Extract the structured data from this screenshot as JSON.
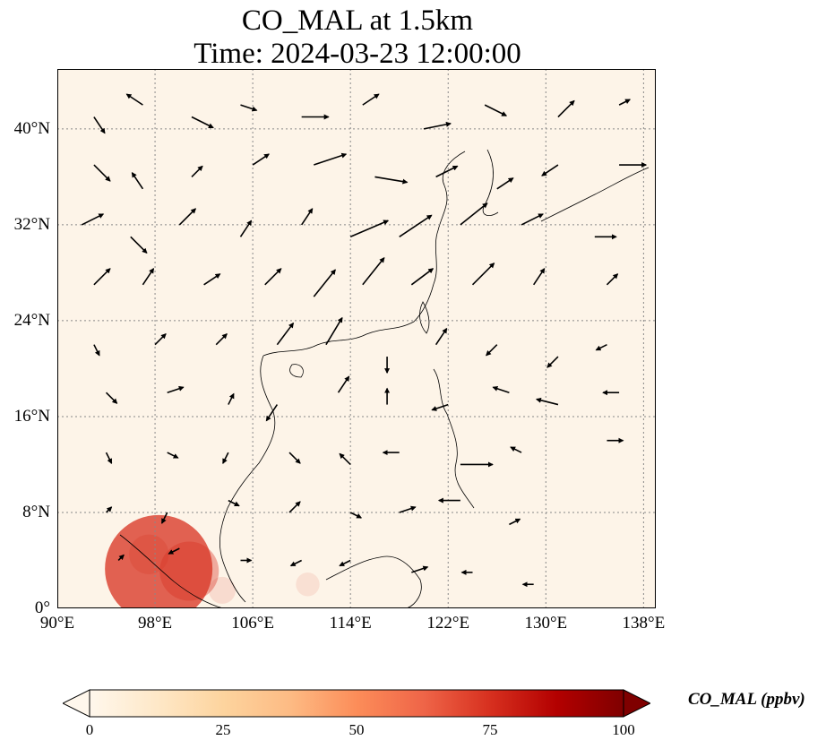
{
  "title": {
    "line1": "CO_MAL at 1.5km",
    "line2": "Time: 2024-03-23 12:00:00"
  },
  "map": {
    "lon_range": [
      90,
      139
    ],
    "lat_range": [
      0,
      45
    ],
    "projection": "PlateCarree",
    "gridlines": "dotted",
    "background_color": "#fdf4e8",
    "hotspot_color": "#d7301f",
    "lon_ticks": [
      {
        "value": 90,
        "label": "90°E"
      },
      {
        "value": 98,
        "label": "98°E"
      },
      {
        "value": 106,
        "label": "106°E"
      },
      {
        "value": 114,
        "label": "114°E"
      },
      {
        "value": 122,
        "label": "122°E"
      },
      {
        "value": 130,
        "label": "130°E"
      },
      {
        "value": 138,
        "label": "138°E"
      }
    ],
    "lat_ticks": [
      {
        "value": 0,
        "label": "0°"
      },
      {
        "value": 8,
        "label": "8°N"
      },
      {
        "value": 16,
        "label": "16°N"
      },
      {
        "value": 24,
        "label": "24°N"
      },
      {
        "value": 32,
        "label": "32°N"
      },
      {
        "value": 40,
        "label": "40°N"
      }
    ],
    "hotspots": [
      {
        "lon": 98.3,
        "lat": 3.3,
        "value": 60
      },
      {
        "lon": 100.8,
        "lat": 3.1,
        "value": 30
      },
      {
        "lon": 97.5,
        "lat": 4.5,
        "value": 18
      },
      {
        "lon": 103.5,
        "lat": 1.5,
        "value": 10
      },
      {
        "lon": 110.5,
        "lat": 2.0,
        "value": 8
      }
    ]
  },
  "wind_field": {
    "description": "wind vectors (arrows) over region",
    "vectors": [
      {
        "lon": 93,
        "lat": 41,
        "u": 2,
        "v": -3
      },
      {
        "lon": 97,
        "lat": 42,
        "u": -3,
        "v": 2
      },
      {
        "lon": 101,
        "lat": 41,
        "u": 4,
        "v": -2
      },
      {
        "lon": 105,
        "lat": 42,
        "u": 3,
        "v": -1
      },
      {
        "lon": 110,
        "lat": 41,
        "u": 5,
        "v": 0
      },
      {
        "lon": 115,
        "lat": 42,
        "u": 3,
        "v": 2
      },
      {
        "lon": 120,
        "lat": 40,
        "u": 5,
        "v": 1
      },
      {
        "lon": 125,
        "lat": 42,
        "u": 4,
        "v": -2
      },
      {
        "lon": 131,
        "lat": 41,
        "u": 3,
        "v": 3
      },
      {
        "lon": 136,
        "lat": 42,
        "u": 2,
        "v": 1
      },
      {
        "lon": 93,
        "lat": 37,
        "u": 3,
        "v": -3
      },
      {
        "lon": 97,
        "lat": 35,
        "u": -2,
        "v": 3
      },
      {
        "lon": 101,
        "lat": 36,
        "u": 2,
        "v": 2
      },
      {
        "lon": 106,
        "lat": 37,
        "u": 3,
        "v": 2
      },
      {
        "lon": 111,
        "lat": 37,
        "u": 6,
        "v": 2
      },
      {
        "lon": 116,
        "lat": 36,
        "u": 6,
        "v": -1
      },
      {
        "lon": 121,
        "lat": 36,
        "u": 4,
        "v": 2
      },
      {
        "lon": 126,
        "lat": 35,
        "u": 3,
        "v": 2
      },
      {
        "lon": 131,
        "lat": 37,
        "u": -3,
        "v": -2
      },
      {
        "lon": 136,
        "lat": 37,
        "u": 5,
        "v": 0
      },
      {
        "lon": 92,
        "lat": 32,
        "u": 4,
        "v": 2
      },
      {
        "lon": 96,
        "lat": 31,
        "u": 3,
        "v": -3
      },
      {
        "lon": 100,
        "lat": 32,
        "u": 3,
        "v": 3
      },
      {
        "lon": 105,
        "lat": 31,
        "u": 2,
        "v": 3
      },
      {
        "lon": 110,
        "lat": 32,
        "u": 2,
        "v": 3
      },
      {
        "lon": 114,
        "lat": 31,
        "u": 7,
        "v": 3
      },
      {
        "lon": 118,
        "lat": 31,
        "u": 6,
        "v": 4
      },
      {
        "lon": 123,
        "lat": 32,
        "u": 5,
        "v": 4
      },
      {
        "lon": 128,
        "lat": 32,
        "u": 4,
        "v": 2
      },
      {
        "lon": 134,
        "lat": 31,
        "u": 4,
        "v": 0
      },
      {
        "lon": 93,
        "lat": 27,
        "u": 3,
        "v": 3
      },
      {
        "lon": 97,
        "lat": 27,
        "u": 2,
        "v": 3
      },
      {
        "lon": 102,
        "lat": 27,
        "u": 3,
        "v": 2
      },
      {
        "lon": 107,
        "lat": 27,
        "u": 3,
        "v": 3
      },
      {
        "lon": 111,
        "lat": 26,
        "u": 4,
        "v": 5
      },
      {
        "lon": 115,
        "lat": 27,
        "u": 4,
        "v": 5
      },
      {
        "lon": 119,
        "lat": 27,
        "u": 4,
        "v": 3
      },
      {
        "lon": 124,
        "lat": 27,
        "u": 4,
        "v": 4
      },
      {
        "lon": 129,
        "lat": 27,
        "u": 2,
        "v": 3
      },
      {
        "lon": 135,
        "lat": 27,
        "u": 2,
        "v": 2
      },
      {
        "lon": 93,
        "lat": 22,
        "u": 1,
        "v": -2
      },
      {
        "lon": 98,
        "lat": 22,
        "u": 2,
        "v": 2
      },
      {
        "lon": 103,
        "lat": 22,
        "u": 2,
        "v": 2
      },
      {
        "lon": 108,
        "lat": 22,
        "u": 3,
        "v": 4
      },
      {
        "lon": 112,
        "lat": 22,
        "u": 3,
        "v": 5
      },
      {
        "lon": 117,
        "lat": 21,
        "u": 0,
        "v": -3
      },
      {
        "lon": 121,
        "lat": 22,
        "u": 2,
        "v": 3
      },
      {
        "lon": 126,
        "lat": 22,
        "u": -2,
        "v": -2
      },
      {
        "lon": 131,
        "lat": 21,
        "u": -2,
        "v": -2
      },
      {
        "lon": 135,
        "lat": 22,
        "u": -2,
        "v": -1
      },
      {
        "lon": 94,
        "lat": 18,
        "u": 2,
        "v": -2
      },
      {
        "lon": 99,
        "lat": 18,
        "u": 3,
        "v": 1
      },
      {
        "lon": 104,
        "lat": 17,
        "u": 1,
        "v": 2
      },
      {
        "lon": 108,
        "lat": 17,
        "u": -2,
        "v": -3
      },
      {
        "lon": 113,
        "lat": 18,
        "u": 2,
        "v": 3
      },
      {
        "lon": 117,
        "lat": 17,
        "u": 0,
        "v": 3
      },
      {
        "lon": 122,
        "lat": 17,
        "u": -3,
        "v": -1
      },
      {
        "lon": 127,
        "lat": 18,
        "u": -3,
        "v": 1
      },
      {
        "lon": 131,
        "lat": 17,
        "u": -4,
        "v": 1
      },
      {
        "lon": 136,
        "lat": 18,
        "u": -3,
        "v": 0
      },
      {
        "lon": 94,
        "lat": 13,
        "u": 1,
        "v": -2
      },
      {
        "lon": 99,
        "lat": 13,
        "u": 2,
        "v": -1
      },
      {
        "lon": 104,
        "lat": 13,
        "u": -1,
        "v": -2
      },
      {
        "lon": 109,
        "lat": 13,
        "u": 2,
        "v": -2
      },
      {
        "lon": 114,
        "lat": 12,
        "u": -2,
        "v": 2
      },
      {
        "lon": 118,
        "lat": 13,
        "u": -3,
        "v": 0
      },
      {
        "lon": 123,
        "lat": 12,
        "u": 6,
        "v": 0
      },
      {
        "lon": 128,
        "lat": 13,
        "u": -2,
        "v": 1
      },
      {
        "lon": 135,
        "lat": 14,
        "u": 3,
        "v": 0
      },
      {
        "lon": 94,
        "lat": 8,
        "u": 1,
        "v": 1
      },
      {
        "lon": 99,
        "lat": 8,
        "u": -1,
        "v": -2
      },
      {
        "lon": 104,
        "lat": 9,
        "u": 2,
        "v": -1
      },
      {
        "lon": 109,
        "lat": 8,
        "u": 2,
        "v": 2
      },
      {
        "lon": 114,
        "lat": 8,
        "u": 2,
        "v": -1
      },
      {
        "lon": 118,
        "lat": 8,
        "u": 3,
        "v": 1
      },
      {
        "lon": 123,
        "lat": 9,
        "u": -4,
        "v": 0
      },
      {
        "lon": 127,
        "lat": 7,
        "u": 2,
        "v": 1
      },
      {
        "lon": 95,
        "lat": 4,
        "u": 1,
        "v": 1
      },
      {
        "lon": 100,
        "lat": 5,
        "u": -2,
        "v": -1
      },
      {
        "lon": 105,
        "lat": 4,
        "u": 2,
        "v": 0
      },
      {
        "lon": 110,
        "lat": 4,
        "u": -2,
        "v": -1
      },
      {
        "lon": 114,
        "lat": 4,
        "u": -2,
        "v": -1
      },
      {
        "lon": 119,
        "lat": 3,
        "u": 3,
        "v": 1
      },
      {
        "lon": 124,
        "lat": 3,
        "u": -2,
        "v": 0
      },
      {
        "lon": 129,
        "lat": 2,
        "u": -2,
        "v": 0
      }
    ]
  },
  "colorbar": {
    "label": "CO_MAL (ppbv)",
    "range": [
      0,
      100
    ],
    "extend": "both",
    "colormap": "OrRd",
    "colors": [
      "#fff7ec",
      "#fee8c8",
      "#fdd49e",
      "#fdbb84",
      "#fc8d59",
      "#ef6548",
      "#d7301f",
      "#b30000",
      "#7f0000"
    ],
    "ticks": [
      {
        "value": 0,
        "label": "0"
      },
      {
        "value": 25,
        "label": "25"
      },
      {
        "value": 50,
        "label": "50"
      },
      {
        "value": 75,
        "label": "75"
      },
      {
        "value": 100,
        "label": "100"
      }
    ]
  }
}
